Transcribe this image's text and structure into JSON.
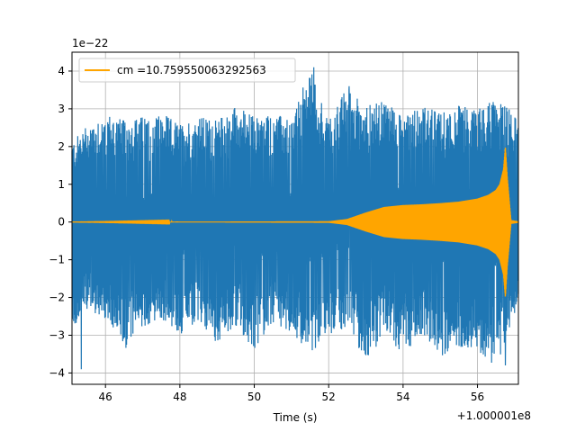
{
  "chart_data": {
    "type": "line",
    "title": "",
    "xlabel": "Time (s)",
    "ylabel": "",
    "x_offset_label": "+1.000001e8",
    "y_scale_label": "1e−22",
    "xlim": [
      45.1,
      57.1
    ],
    "ylim": [
      -4.3,
      4.5
    ],
    "x_ticks": [
      46,
      48,
      50,
      52,
      54,
      56
    ],
    "x_tick_labels": [
      "46",
      "48",
      "50",
      "52",
      "54",
      "56"
    ],
    "y_ticks": [
      -4,
      -3,
      -2,
      -1,
      0,
      1,
      2,
      3,
      4
    ],
    "y_tick_labels": [
      "−4",
      "−3",
      "−2",
      "−1",
      "0",
      "1",
      "2",
      "3",
      "4"
    ],
    "grid": true,
    "legend_position": "upper-left",
    "colors": {
      "strain": "#1f77b4",
      "template": "#ffa500",
      "grid": "#b0b0b0"
    },
    "series": [
      {
        "role": "noisy-strain",
        "x": [
          45.1,
          45.5,
          46.0,
          46.5,
          47.0,
          47.5,
          48.0,
          48.5,
          49.0,
          49.5,
          50.0,
          50.5,
          51.0,
          51.5,
          52.0,
          52.5,
          53.0,
          53.5,
          54.0,
          54.5,
          55.0,
          55.5,
          56.0,
          56.5,
          57.1
        ],
        "upper": [
          2.1,
          2.6,
          2.9,
          2.7,
          2.8,
          2.9,
          2.6,
          2.8,
          2.7,
          3.1,
          2.8,
          2.9,
          2.7,
          4.1,
          2.7,
          3.6,
          3.1,
          3.2,
          3.0,
          3.1,
          2.9,
          3.1,
          3.0,
          3.3,
          2.8
        ],
        "lower": [
          -2.9,
          -2.3,
          -2.6,
          -3.4,
          -2.8,
          -2.6,
          -3.0,
          -2.7,
          -3.2,
          -2.8,
          -3.4,
          -2.7,
          -2.9,
          -3.5,
          -3.0,
          -2.8,
          -3.7,
          -3.0,
          -3.5,
          -3.0,
          -3.6,
          -3.3,
          -3.4,
          -3.9,
          -2.1
        ],
        "peaks": [
          {
            "x": 51.6,
            "y": 4.1
          },
          {
            "x": 52.55,
            "y": 3.6
          },
          {
            "x": 45.35,
            "y": -3.9
          },
          {
            "x": 56.75,
            "y": -3.8
          }
        ]
      },
      {
        "name": "cm =10.759550063292563",
        "role": "template",
        "envelope_x": [
          45.1,
          52.0,
          52.5,
          53.0,
          53.5,
          54.0,
          54.5,
          55.0,
          55.5,
          56.0,
          56.3,
          56.5,
          56.6,
          56.7,
          56.75,
          56.8,
          56.9,
          57.1
        ],
        "envelope_amp": [
          0.0,
          0.02,
          0.08,
          0.25,
          0.4,
          0.45,
          0.47,
          0.5,
          0.54,
          0.62,
          0.72,
          0.85,
          1.0,
          1.4,
          2.0,
          1.2,
          0.05,
          0.02
        ]
      }
    ]
  }
}
